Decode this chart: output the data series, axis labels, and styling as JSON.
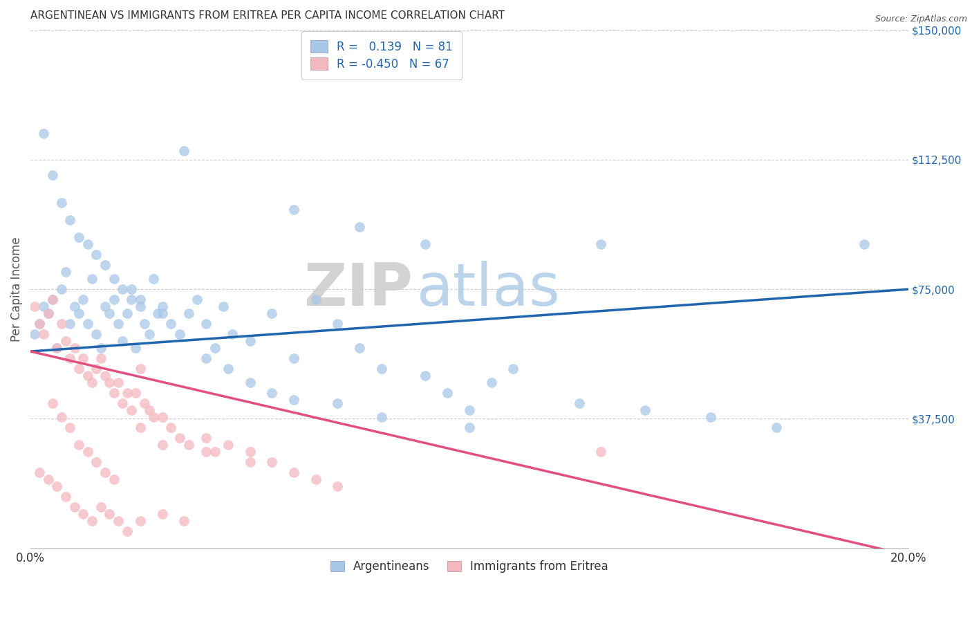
{
  "title": "ARGENTINEAN VS IMMIGRANTS FROM ERITREA PER CAPITA INCOME CORRELATION CHART",
  "source": "Source: ZipAtlas.com",
  "ylabel": "Per Capita Income",
  "xlim": [
    0.0,
    0.2
  ],
  "ylim": [
    0,
    150000
  ],
  "yticks": [
    0,
    37500,
    75000,
    112500,
    150000
  ],
  "ytick_labels": [
    "",
    "$37,500",
    "$75,000",
    "$112,500",
    "$150,000"
  ],
  "xticks": [
    0.0,
    0.05,
    0.1,
    0.15,
    0.2
  ],
  "xtick_labels": [
    "0.0%",
    "",
    "",
    "",
    "20.0%"
  ],
  "blue_R": 0.139,
  "blue_N": 81,
  "pink_R": -0.45,
  "pink_N": 67,
  "blue_color": "#a8c8e8",
  "pink_color": "#f4b8c0",
  "blue_line_color": "#2166ac",
  "pink_line_color": "#e05080",
  "watermark_zip": "ZIP",
  "watermark_atlas": "atlas",
  "legend_label_blue": "Argentineans",
  "legend_label_pink": "Immigrants from Eritrea",
  "blue_line_x0": 0.0,
  "blue_line_y0": 57000,
  "blue_line_x1": 0.2,
  "blue_line_y1": 75000,
  "pink_line_x0": 0.0,
  "pink_line_y0": 57000,
  "pink_line_x1": 0.2,
  "pink_line_y1": -2000,
  "blue_scatter_x": [
    0.001,
    0.002,
    0.003,
    0.004,
    0.005,
    0.006,
    0.007,
    0.008,
    0.009,
    0.01,
    0.011,
    0.012,
    0.013,
    0.014,
    0.015,
    0.016,
    0.017,
    0.018,
    0.019,
    0.02,
    0.021,
    0.022,
    0.023,
    0.024,
    0.025,
    0.026,
    0.027,
    0.028,
    0.029,
    0.03,
    0.032,
    0.034,
    0.036,
    0.038,
    0.04,
    0.042,
    0.044,
    0.046,
    0.05,
    0.055,
    0.06,
    0.065,
    0.07,
    0.075,
    0.08,
    0.09,
    0.095,
    0.1,
    0.105,
    0.11,
    0.003,
    0.005,
    0.007,
    0.009,
    0.011,
    0.013,
    0.015,
    0.017,
    0.019,
    0.021,
    0.023,
    0.025,
    0.03,
    0.035,
    0.04,
    0.045,
    0.05,
    0.055,
    0.06,
    0.07,
    0.08,
    0.1,
    0.125,
    0.14,
    0.155,
    0.17,
    0.06,
    0.075,
    0.09,
    0.13,
    0.19
  ],
  "blue_scatter_y": [
    62000,
    65000,
    70000,
    68000,
    72000,
    58000,
    75000,
    80000,
    65000,
    70000,
    68000,
    72000,
    65000,
    78000,
    62000,
    58000,
    70000,
    68000,
    72000,
    65000,
    60000,
    68000,
    75000,
    58000,
    72000,
    65000,
    62000,
    78000,
    68000,
    70000,
    65000,
    62000,
    68000,
    72000,
    65000,
    58000,
    70000,
    62000,
    60000,
    68000,
    55000,
    72000,
    65000,
    58000,
    52000,
    50000,
    45000,
    40000,
    48000,
    52000,
    120000,
    108000,
    100000,
    95000,
    90000,
    88000,
    85000,
    82000,
    78000,
    75000,
    72000,
    70000,
    68000,
    115000,
    55000,
    52000,
    48000,
    45000,
    43000,
    42000,
    38000,
    35000,
    42000,
    40000,
    38000,
    35000,
    98000,
    93000,
    88000,
    88000,
    88000
  ],
  "pink_scatter_x": [
    0.001,
    0.002,
    0.003,
    0.004,
    0.005,
    0.006,
    0.007,
    0.008,
    0.009,
    0.01,
    0.011,
    0.012,
    0.013,
    0.014,
    0.015,
    0.016,
    0.017,
    0.018,
    0.019,
    0.02,
    0.021,
    0.022,
    0.023,
    0.024,
    0.025,
    0.026,
    0.027,
    0.028,
    0.03,
    0.032,
    0.034,
    0.036,
    0.04,
    0.042,
    0.045,
    0.05,
    0.055,
    0.06,
    0.065,
    0.07,
    0.002,
    0.004,
    0.006,
    0.008,
    0.01,
    0.012,
    0.014,
    0.016,
    0.018,
    0.02,
    0.022,
    0.025,
    0.03,
    0.035,
    0.005,
    0.007,
    0.009,
    0.011,
    0.013,
    0.015,
    0.017,
    0.019,
    0.025,
    0.03,
    0.04,
    0.05,
    0.13
  ],
  "pink_scatter_y": [
    70000,
    65000,
    62000,
    68000,
    72000,
    58000,
    65000,
    60000,
    55000,
    58000,
    52000,
    55000,
    50000,
    48000,
    52000,
    55000,
    50000,
    48000,
    45000,
    48000,
    42000,
    45000,
    40000,
    45000,
    52000,
    42000,
    40000,
    38000,
    38000,
    35000,
    32000,
    30000,
    32000,
    28000,
    30000,
    28000,
    25000,
    22000,
    20000,
    18000,
    22000,
    20000,
    18000,
    15000,
    12000,
    10000,
    8000,
    12000,
    10000,
    8000,
    5000,
    8000,
    10000,
    8000,
    42000,
    38000,
    35000,
    30000,
    28000,
    25000,
    22000,
    20000,
    35000,
    30000,
    28000,
    25000,
    28000
  ]
}
